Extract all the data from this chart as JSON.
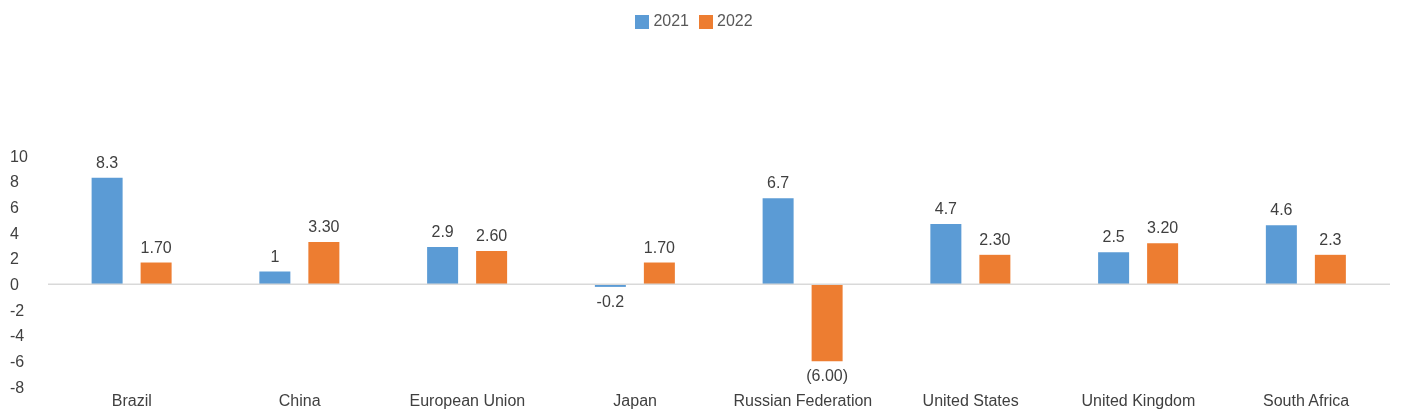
{
  "chart_data": {
    "type": "bar",
    "categories": [
      "Brazil",
      "China",
      "European Union",
      "Japan",
      "Russian Federation",
      "United States",
      "United Kingdom",
      "South Africa"
    ],
    "series": [
      {
        "name": "2021",
        "color": "#5b9bd5",
        "values": [
          8.3,
          1,
          2.9,
          -0.2,
          6.7,
          4.7,
          2.5,
          4.6
        ],
        "value_labels": [
          "8.3",
          "1",
          "2.9",
          "-0.2",
          "6.7",
          "4.7",
          "2.5",
          "4.6"
        ]
      },
      {
        "name": "2022",
        "color": "#ed7d31",
        "values": [
          1.7,
          3.3,
          2.6,
          1.7,
          -6,
          2.3,
          3.2,
          2.3
        ],
        "value_labels": [
          "1.70",
          "3.30",
          "2.60",
          "1.70",
          "(6.00)",
          "2.30",
          "3.20",
          "2.3"
        ]
      }
    ],
    "ylim": [
      -8,
      10
    ],
    "yticks": [
      -8,
      -6,
      -4,
      -2,
      0,
      2,
      4,
      6,
      8,
      10
    ],
    "ref_lines": [
      {
        "axis": "y",
        "value": 0,
        "color": "#d9d9d9"
      }
    ],
    "legend": "top"
  }
}
